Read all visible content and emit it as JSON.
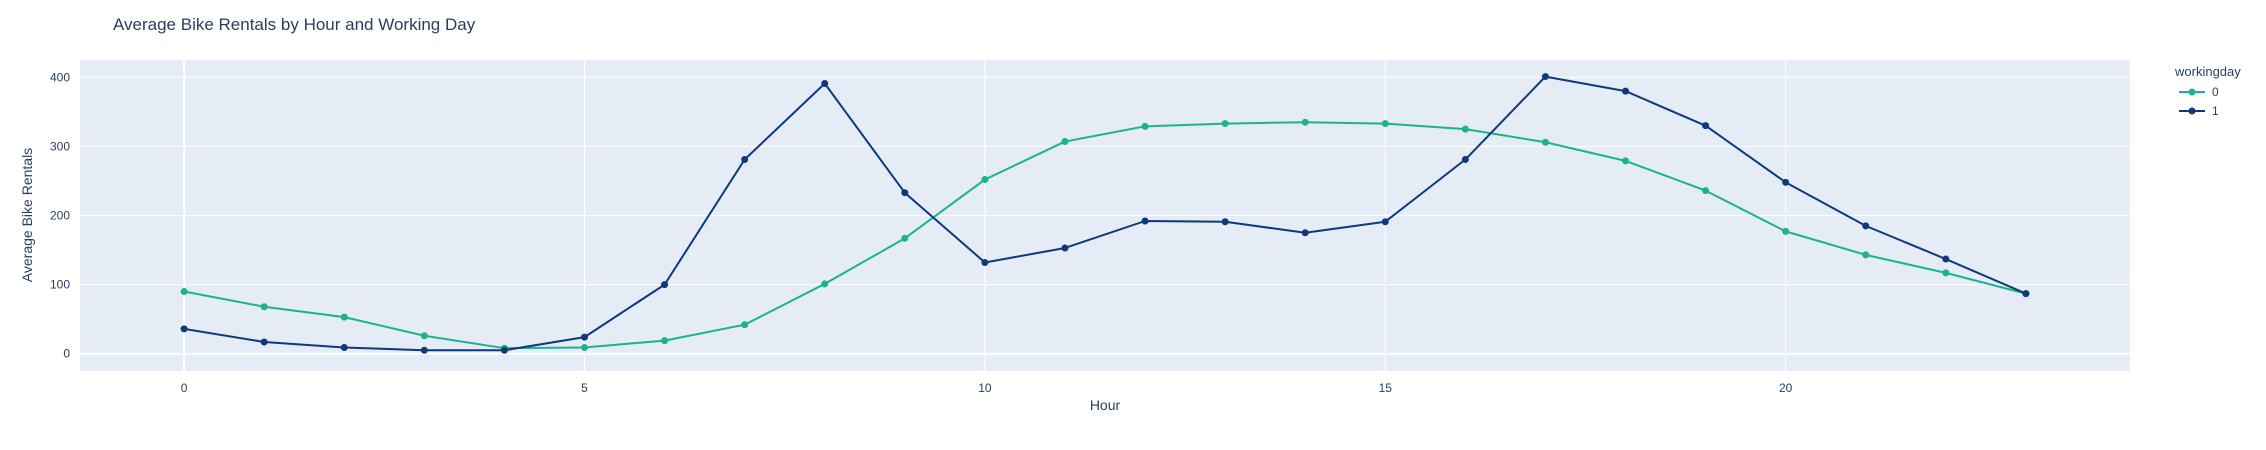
{
  "chart_data": {
    "type": "line",
    "title": "Average Bike Rentals by Hour and Working Day",
    "xlabel": "Hour",
    "ylabel": "Average Bike Rentals",
    "xlim": [
      -1.3,
      24.3
    ],
    "ylim": [
      -25,
      425
    ],
    "xticks": [
      0,
      5,
      10,
      15,
      20
    ],
    "yticks": [
      0,
      100,
      200,
      300,
      400
    ],
    "grid": true,
    "legend": {
      "title": "workingday",
      "position": "top-right"
    },
    "x": [
      0,
      1,
      2,
      3,
      4,
      5,
      6,
      7,
      8,
      9,
      10,
      11,
      12,
      13,
      14,
      15,
      16,
      17,
      18,
      19,
      20,
      21,
      22,
      23
    ],
    "series": [
      {
        "name": "0",
        "color": "#1cb38c",
        "values": [
          90,
          68,
          53,
          26,
          8,
          9,
          19,
          42,
          101,
          167,
          252,
          307,
          329,
          333,
          335,
          333,
          325,
          306,
          279,
          236,
          177,
          143,
          117,
          87
        ]
      },
      {
        "name": "1",
        "color": "#0d3a7a",
        "values": [
          36,
          17,
          9,
          5,
          5,
          24,
          100,
          281,
          391,
          233,
          132,
          153,
          192,
          191,
          175,
          191,
          281,
          401,
          380,
          330,
          248,
          185,
          137,
          87
        ]
      }
    ]
  }
}
